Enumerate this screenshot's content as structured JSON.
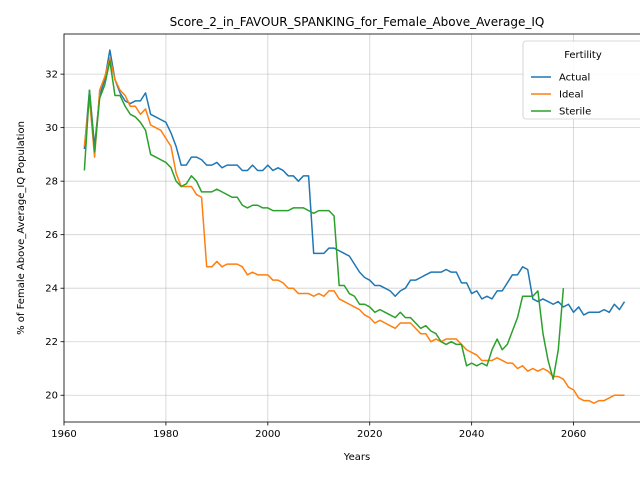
{
  "chart_data": {
    "type": "line",
    "title": "Score_2_in_FAVOUR_SPANKING_for_Female_Above_Average_IQ",
    "xlabel": "Years",
    "ylabel": "% of Female Above_Average_IQ Population",
    "xlim": [
      1960,
      2075
    ],
    "ylim": [
      19.0,
      33.5
    ],
    "xticks": [
      1960,
      1980,
      2000,
      2020,
      2040,
      2060
    ],
    "yticks": [
      20,
      22,
      24,
      26,
      28,
      30,
      32
    ],
    "grid": true,
    "legend": {
      "title": "Fertility",
      "position": "top-right"
    },
    "series": [
      {
        "name": "Actual",
        "color": "#1f77b4",
        "x": [
          1964,
          1965,
          1966,
          1967,
          1968,
          1969,
          1970,
          1971,
          1972,
          1973,
          1974,
          1975,
          1976,
          1977,
          1978,
          1979,
          1980,
          1981,
          1982,
          1983,
          1984,
          1985,
          1986,
          1987,
          1988,
          1989,
          1990,
          1991,
          1992,
          1993,
          1994,
          1995,
          1996,
          1997,
          1998,
          1999,
          2000,
          2001,
          2002,
          2003,
          2004,
          2005,
          2006,
          2007,
          2008,
          2009,
          2010,
          2011,
          2012,
          2013,
          2014,
          2015,
          2016,
          2017,
          2018,
          2019,
          2020,
          2021,
          2022,
          2023,
          2024,
          2025,
          2026,
          2027,
          2028,
          2029,
          2030,
          2031,
          2032,
          2033,
          2034,
          2035,
          2036,
          2037,
          2038,
          2039,
          2040,
          2041,
          2042,
          2043,
          2044,
          2045,
          2046,
          2047,
          2048,
          2049,
          2050,
          2051,
          2052,
          2053,
          2054,
          2055,
          2056,
          2057,
          2058,
          2059,
          2060,
          2061,
          2062,
          2063,
          2064,
          2065,
          2066,
          2067,
          2068,
          2069,
          2070
        ],
        "y": [
          29.2,
          31.4,
          29.3,
          31.2,
          31.8,
          32.9,
          31.8,
          31.3,
          31.0,
          30.9,
          31.0,
          31.0,
          31.3,
          30.5,
          30.4,
          30.3,
          30.2,
          29.8,
          29.3,
          28.6,
          28.6,
          28.9,
          28.9,
          28.8,
          28.6,
          28.6,
          28.7,
          28.5,
          28.6,
          28.6,
          28.6,
          28.4,
          28.4,
          28.6,
          28.4,
          28.4,
          28.6,
          28.4,
          28.5,
          28.4,
          28.2,
          28.2,
          28.0,
          28.2,
          28.2,
          25.3,
          25.3,
          25.3,
          25.5,
          25.5,
          25.4,
          25.3,
          25.2,
          24.9,
          24.6,
          24.4,
          24.3,
          24.1,
          24.1,
          24.0,
          23.9,
          23.7,
          23.9,
          24.0,
          24.3,
          24.3,
          24.4,
          24.5,
          24.6,
          24.6,
          24.6,
          24.7,
          24.6,
          24.6,
          24.2,
          24.2,
          23.8,
          23.9,
          23.6,
          23.7,
          23.6,
          23.9,
          23.9,
          24.2,
          24.5,
          24.5,
          24.8,
          24.7,
          23.6,
          23.5,
          23.6,
          23.5,
          23.4,
          23.5,
          23.3,
          23.4,
          23.1,
          23.3,
          23.0,
          23.1,
          23.1,
          23.1,
          23.2,
          23.1,
          23.4,
          23.2,
          23.5
        ]
      },
      {
        "name": "Ideal",
        "color": "#ff7f0e",
        "x": [
          1964,
          1965,
          1966,
          1967,
          1968,
          1969,
          1970,
          1971,
          1972,
          1973,
          1974,
          1975,
          1976,
          1977,
          1978,
          1979,
          1980,
          1981,
          1982,
          1983,
          1984,
          1985,
          1986,
          1987,
          1988,
          1989,
          1990,
          1991,
          1992,
          1993,
          1994,
          1995,
          1996,
          1997,
          1998,
          1999,
          2000,
          2001,
          2002,
          2003,
          2004,
          2005,
          2006,
          2007,
          2008,
          2009,
          2010,
          2011,
          2012,
          2013,
          2014,
          2015,
          2016,
          2017,
          2018,
          2019,
          2020,
          2021,
          2022,
          2023,
          2024,
          2025,
          2026,
          2027,
          2028,
          2029,
          2030,
          2031,
          2032,
          2033,
          2034,
          2035,
          2036,
          2037,
          2038,
          2039,
          2040,
          2041,
          2042,
          2043,
          2044,
          2045,
          2046,
          2047,
          2048,
          2049,
          2050,
          2051,
          2052,
          2053,
          2054,
          2055,
          2056,
          2057,
          2058,
          2059,
          2060,
          2061,
          2062,
          2063,
          2064,
          2065,
          2066,
          2067,
          2068,
          2069,
          2070
        ],
        "y": [
          29.3,
          31.1,
          28.9,
          31.4,
          31.9,
          32.6,
          31.8,
          31.4,
          31.2,
          30.8,
          30.8,
          30.5,
          30.7,
          30.1,
          30.0,
          29.9,
          29.6,
          29.3,
          28.3,
          27.8,
          27.8,
          27.8,
          27.5,
          27.4,
          24.8,
          24.8,
          25.0,
          24.8,
          24.9,
          24.9,
          24.9,
          24.8,
          24.5,
          24.6,
          24.5,
          24.5,
          24.5,
          24.3,
          24.3,
          24.2,
          24.0,
          24.0,
          23.8,
          23.8,
          23.8,
          23.7,
          23.8,
          23.7,
          23.9,
          23.9,
          23.6,
          23.5,
          23.4,
          23.3,
          23.2,
          23.0,
          22.9,
          22.7,
          22.8,
          22.7,
          22.6,
          22.5,
          22.7,
          22.7,
          22.7,
          22.5,
          22.3,
          22.3,
          22.0,
          22.1,
          22.0,
          22.1,
          22.1,
          22.1,
          21.9,
          21.7,
          21.6,
          21.5,
          21.3,
          21.3,
          21.3,
          21.4,
          21.3,
          21.2,
          21.2,
          21.0,
          21.1,
          20.9,
          21.0,
          20.9,
          21.0,
          20.9,
          20.7,
          20.7,
          20.6,
          20.3,
          20.2,
          19.9,
          19.8,
          19.8,
          19.7,
          19.8,
          19.8,
          19.9,
          20.0,
          20.0,
          20.0
        ]
      },
      {
        "name": "Sterile",
        "color": "#2ca02c",
        "x": [
          1964,
          1965,
          1966,
          1967,
          1968,
          1969,
          1970,
          1971,
          1972,
          1973,
          1974,
          1975,
          1976,
          1977,
          1978,
          1979,
          1980,
          1981,
          1982,
          1983,
          1984,
          1985,
          1986,
          1987,
          1988,
          1989,
          1990,
          1991,
          1992,
          1993,
          1994,
          1995,
          1996,
          1997,
          1998,
          1999,
          2000,
          2001,
          2002,
          2003,
          2004,
          2005,
          2006,
          2007,
          2008,
          2009,
          2010,
          2011,
          2012,
          2013,
          2014,
          2015,
          2016,
          2017,
          2018,
          2019,
          2020,
          2021,
          2022,
          2023,
          2024,
          2025,
          2026,
          2027,
          2028,
          2029,
          2030,
          2031,
          2032,
          2033,
          2034,
          2035,
          2036,
          2037,
          2038,
          2039,
          2040,
          2041,
          2042,
          2043,
          2044,
          2045,
          2046,
          2047,
          2048,
          2049,
          2050,
          2051,
          2052,
          2053,
          2054,
          2055,
          2056,
          2057,
          2058
        ],
        "y": [
          28.4,
          31.4,
          29.1,
          31.1,
          31.6,
          32.5,
          31.2,
          31.2,
          30.8,
          30.5,
          30.4,
          30.2,
          29.9,
          29.0,
          28.9,
          28.8,
          28.7,
          28.5,
          28.0,
          27.8,
          27.9,
          28.2,
          28.0,
          27.6,
          27.6,
          27.6,
          27.7,
          27.6,
          27.5,
          27.4,
          27.4,
          27.1,
          27.0,
          27.1,
          27.1,
          27.0,
          27.0,
          26.9,
          26.9,
          26.9,
          26.9,
          27.0,
          27.0,
          27.0,
          26.9,
          26.8,
          26.9,
          26.9,
          26.9,
          26.7,
          24.1,
          24.1,
          23.8,
          23.7,
          23.4,
          23.4,
          23.3,
          23.1,
          23.2,
          23.1,
          23.0,
          22.9,
          23.1,
          22.9,
          22.9,
          22.7,
          22.5,
          22.6,
          22.4,
          22.3,
          22.0,
          21.9,
          22.0,
          21.9,
          21.9,
          21.1,
          21.2,
          21.1,
          21.2,
          21.1,
          21.7,
          22.1,
          21.7,
          21.9,
          22.4,
          22.9,
          23.7,
          23.7,
          23.7,
          23.9,
          22.3,
          21.3,
          20.6,
          21.7,
          24.0
        ]
      }
    ]
  }
}
